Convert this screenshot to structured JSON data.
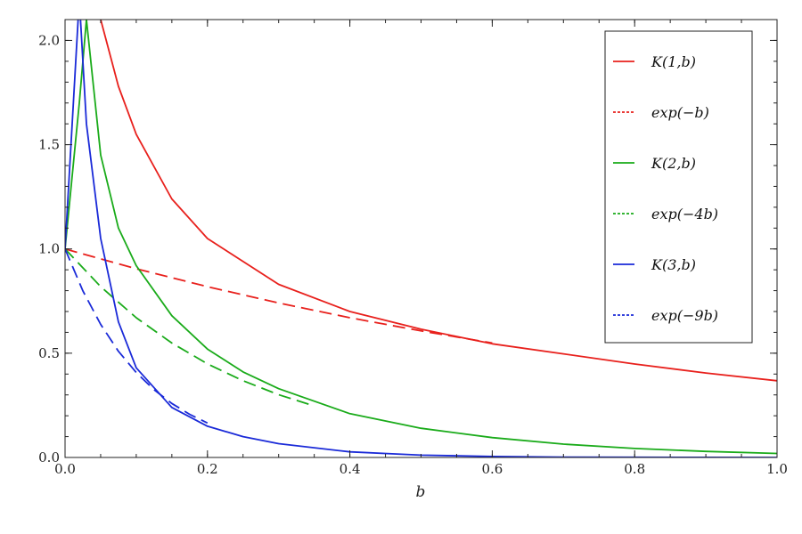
{
  "chart_data": {
    "type": "line",
    "title": "",
    "xlabel": "b",
    "ylabel": "",
    "xlim": [
      0,
      1
    ],
    "ylim": [
      0,
      2.1
    ],
    "grid": false,
    "legend_position": "top-right",
    "x_ticks": [
      "0.0",
      "0.2",
      "0.4",
      "0.6",
      "0.8",
      "1.0"
    ],
    "y_ticks": [
      "0.0",
      "0.5",
      "1.0",
      "1.5",
      "2.0"
    ],
    "series": [
      {
        "name": "K(1,b)",
        "style": "solid",
        "color": "#e8201c",
        "x": [
          0.025,
          0.05,
          0.075,
          0.1,
          0.15,
          0.2,
          0.3,
          0.4,
          0.5,
          0.6,
          0.7,
          0.8,
          0.9,
          1.0
        ],
        "y": [
          2.4,
          2.1,
          1.78,
          1.55,
          1.24,
          1.05,
          0.83,
          0.7,
          0.615,
          0.545,
          0.497,
          0.448,
          0.405,
          0.368
        ]
      },
      {
        "name": "exp(−b)",
        "style": "dashed",
        "color": "#e8201c",
        "x": [
          0.0,
          0.1,
          0.2,
          0.3,
          0.4,
          0.5,
          0.6
        ],
        "y": [
          1.0,
          0.905,
          0.819,
          0.741,
          0.67,
          0.607,
          0.549
        ]
      },
      {
        "name": "K(2,b)",
        "style": "solid",
        "color": "#1aab1a",
        "x": [
          0.0,
          0.02,
          0.03,
          0.05,
          0.075,
          0.1,
          0.15,
          0.2,
          0.25,
          0.3,
          0.4,
          0.5,
          0.6,
          0.7,
          0.8,
          0.9,
          1.0
        ],
        "y": [
          1.0,
          1.7,
          2.1,
          1.45,
          1.1,
          0.92,
          0.68,
          0.52,
          0.41,
          0.33,
          0.21,
          0.14,
          0.095,
          0.064,
          0.043,
          0.029,
          0.019
        ]
      },
      {
        "name": "exp(−4b)",
        "style": "dashed",
        "color": "#1aab1a",
        "x": [
          0.0,
          0.05,
          0.1,
          0.15,
          0.2,
          0.25,
          0.3,
          0.35
        ],
        "y": [
          1.0,
          0.819,
          0.67,
          0.549,
          0.449,
          0.368,
          0.301,
          0.247
        ]
      },
      {
        "name": "K(3,b)",
        "style": "solid",
        "color": "#1a2ad8",
        "x": [
          0.0,
          0.01,
          0.02,
          0.03,
          0.05,
          0.075,
          0.1,
          0.15,
          0.2,
          0.25,
          0.3,
          0.4,
          0.5,
          0.6,
          0.7,
          0.8,
          0.9,
          1.0
        ],
        "y": [
          1.0,
          1.6,
          2.2,
          1.6,
          1.05,
          0.65,
          0.43,
          0.24,
          0.15,
          0.1,
          0.066,
          0.027,
          0.011,
          0.0045,
          0.0018,
          0.0007,
          0.0003,
          0.0001
        ]
      },
      {
        "name": "exp(−9b)",
        "style": "dashed",
        "color": "#1a2ad8",
        "x": [
          0.0,
          0.025,
          0.05,
          0.075,
          0.1,
          0.125,
          0.15,
          0.175,
          0.2
        ],
        "y": [
          1.0,
          0.799,
          0.638,
          0.509,
          0.407,
          0.325,
          0.259,
          0.207,
          0.165
        ]
      }
    ]
  }
}
